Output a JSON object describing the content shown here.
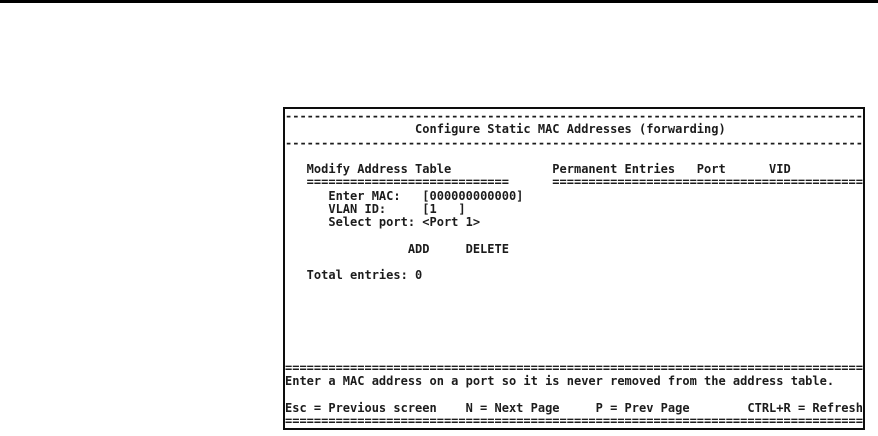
{
  "screen": {
    "title": "Configure Static MAC Addresses (forwarding)",
    "dividers": {
      "dash_row": "--------------------------------------------------------------------------------",
      "equals_row": "================================================================================",
      "modify_underline": "============================",
      "entries_underline": "==========================================="
    },
    "modify_table": {
      "heading": "Modify Address Table",
      "enter_mac": {
        "label": "Enter MAC:",
        "value": "[000000000000]"
      },
      "vlan_id": {
        "label": "VLAN ID:",
        "value": "[1   ]"
      },
      "select_port": {
        "label": "Select port:",
        "value": "<Port 1>"
      },
      "add_button": "ADD",
      "delete_button": "DELETE",
      "total_entries": {
        "label": "Total entries:",
        "value": "0"
      }
    },
    "permanent_entries": {
      "heading": "Permanent Entries",
      "port_header": "Port",
      "vid_header": "VID"
    },
    "status_message": "Enter a MAC address on a port so it is never removed from the address table.",
    "key_hints": [
      {
        "label": "Esc = Previous screen"
      },
      {
        "label": "N = Next Page"
      },
      {
        "label": "P = Prev Page"
      },
      {
        "label": "CTRL+R = Refresh"
      }
    ]
  }
}
